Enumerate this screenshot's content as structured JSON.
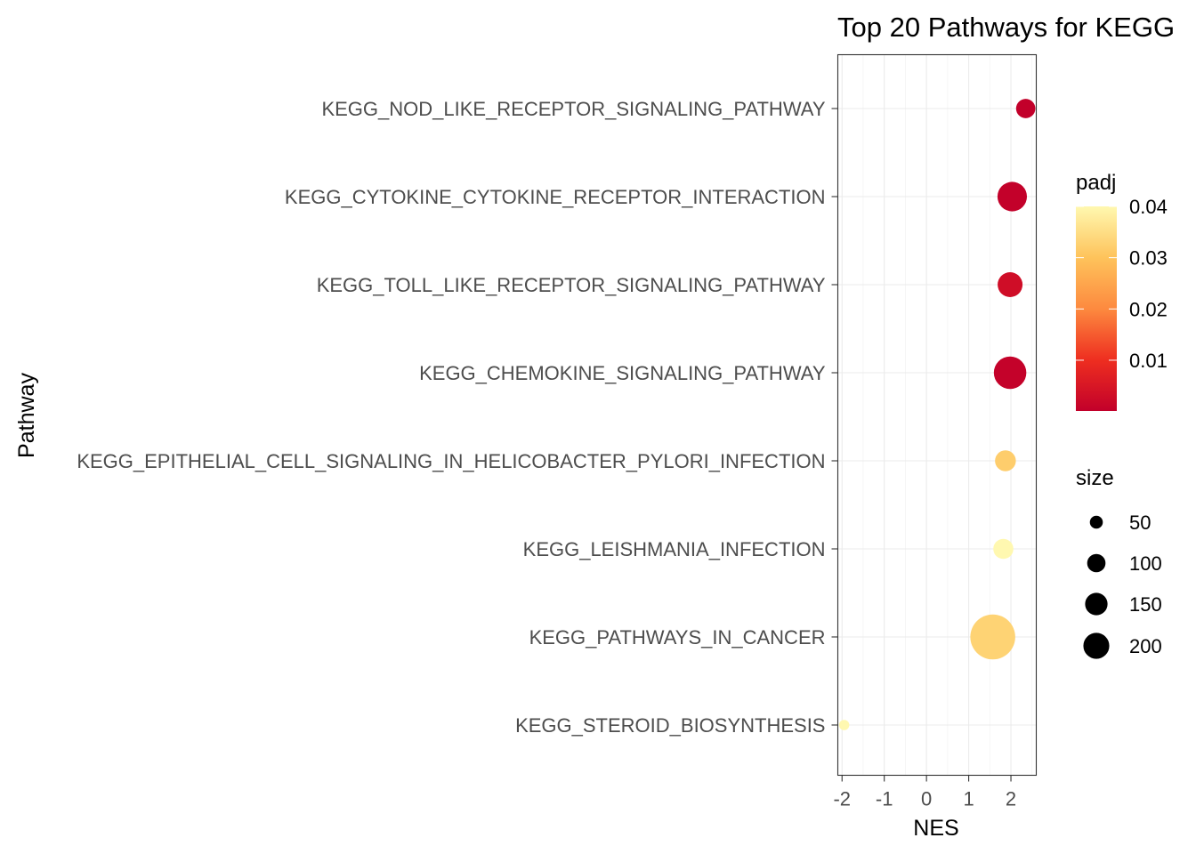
{
  "chart_data": {
    "type": "scatter",
    "title": "Top 20 Pathways for  KEGG",
    "xlabel": "NES",
    "ylabel": "Pathway",
    "xlim": [
      -2.1,
      2.6
    ],
    "x_ticks": [
      -2,
      -1,
      0,
      1,
      2
    ],
    "x_tick_labels": [
      "-2",
      "-1",
      "0",
      "1",
      "2"
    ],
    "grid": true,
    "points": [
      {
        "pathway": "KEGG_NOD_LIKE_RECEPTOR_SIGNALING_PATHWAY",
        "NES": 2.35,
        "padj": 0.0001,
        "size": 60
      },
      {
        "pathway": "KEGG_CYTOKINE_CYTOKINE_RECEPTOR_INTERACTION",
        "NES": 2.03,
        "padj": 0.0003,
        "size": 140
      },
      {
        "pathway": "KEGG_TOLL_LIKE_RECEPTOR_SIGNALING_PATHWAY",
        "NES": 1.98,
        "padj": 0.003,
        "size": 100
      },
      {
        "pathway": "KEGG_CHEMOKINE_SIGNALING_PATHWAY",
        "NES": 1.98,
        "padj": 0.0005,
        "size": 170
      },
      {
        "pathway": "KEGG_EPITHELIAL_CELL_SIGNALING_IN_HELICOBACTER_PYLORI_INFECTION",
        "NES": 1.87,
        "padj": 0.032,
        "size": 70
      },
      {
        "pathway": "KEGG_LEISHMANIA_INFECTION",
        "NES": 1.82,
        "padj": 0.04,
        "size": 65
      },
      {
        "pathway": "KEGG_PATHWAYS_IN_CANCER",
        "NES": 1.57,
        "padj": 0.033,
        "size": 325
      },
      {
        "pathway": "KEGG_STEROID_BIOSYNTHESIS",
        "NES": -1.95,
        "padj": 0.04,
        "size": 17
      }
    ],
    "color_legend": {
      "title": "padj",
      "ticks": [
        0.01,
        0.02,
        0.03,
        0.04
      ],
      "tick_labels": [
        "0.01",
        "0.02",
        "0.03",
        "0.04"
      ],
      "range": [
        0.0001,
        0.04
      ],
      "colors": [
        "#c2002a",
        "#ee2e20",
        "#fd8a3f",
        "#fec35b",
        "#fff8b0"
      ]
    },
    "size_legend": {
      "title": "size",
      "values": [
        50,
        100,
        150,
        200
      ],
      "labels": [
        "50",
        "100",
        "150",
        "200"
      ]
    }
  }
}
